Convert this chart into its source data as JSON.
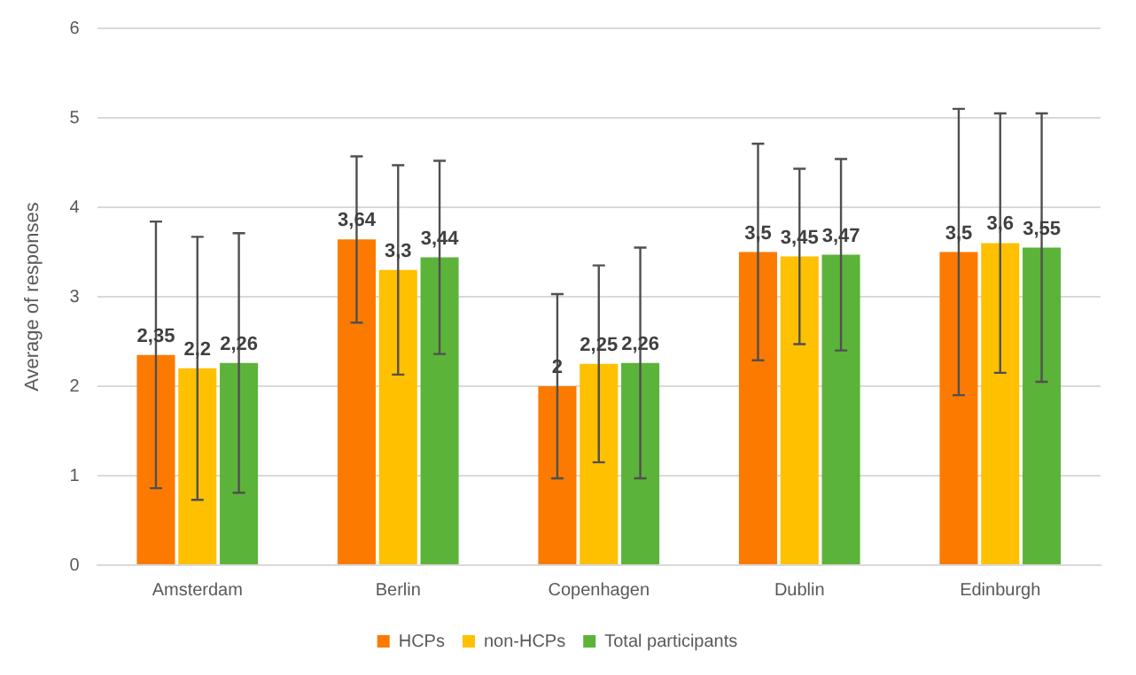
{
  "chart_data": {
    "type": "bar",
    "ylabel": "Average of responses",
    "categories": [
      "Amsterdam",
      "Berlin",
      "Copenhagen",
      "Dublin",
      "Edinburgh"
    ],
    "series": [
      {
        "name": "HCPs",
        "color": "#fd7a00",
        "values": [
          2.35,
          3.64,
          2,
          3.5,
          3.5
        ],
        "value_labels": [
          "2,35",
          "3,64",
          "2",
          "3,5",
          "3,5"
        ],
        "errors": [
          1.49,
          0.93,
          1.03,
          1.21,
          1.6
        ]
      },
      {
        "name": "non-HCPs",
        "color": "#ffc000",
        "values": [
          2.2,
          3.3,
          2.25,
          3.45,
          3.6
        ],
        "value_labels": [
          "2,2",
          "3,3",
          "2,25",
          "3,45",
          "3,6"
        ],
        "errors": [
          1.47,
          1.17,
          1.1,
          0.98,
          1.45
        ]
      },
      {
        "name": "Total participants",
        "color": "#5cb33a",
        "values": [
          2.26,
          3.44,
          2.26,
          3.47,
          3.55
        ],
        "value_labels": [
          "2,26",
          "3,44",
          "2,26",
          "3,47",
          "3,55"
        ],
        "errors": [
          1.45,
          1.08,
          1.29,
          1.07,
          1.5
        ]
      }
    ],
    "ylim": [
      0,
      6
    ],
    "yticks": [
      0,
      1,
      2,
      3,
      4,
      5,
      6
    ],
    "grid": "y",
    "legend": "bottom"
  }
}
